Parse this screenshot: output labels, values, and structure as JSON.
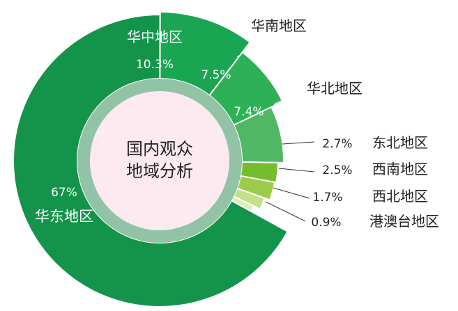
{
  "chart_data": {
    "type": "pie",
    "title": "",
    "center_label": [
      "国内观众",
      "地域分析"
    ],
    "slices": [
      {
        "name": "华东地区",
        "value": 67,
        "label": "67%",
        "color": "#14944a"
      },
      {
        "name": "华中地区",
        "value": 10.3,
        "label": "10.3%",
        "color": "#1aa552"
      },
      {
        "name": "华南地区",
        "value": 7.5,
        "label": "7.5%",
        "color": "#2eb057"
      },
      {
        "name": "华北地区",
        "value": 7.4,
        "label": "7.4%",
        "color": "#50b864"
      },
      {
        "name": "东北地区",
        "value": 2.7,
        "label": "2.7%",
        "color": "#76bd2e"
      },
      {
        "name": "西南地区",
        "value": 2.5,
        "label": "2.5%",
        "color": "#9ccc4a"
      },
      {
        "name": "西北地区",
        "value": 1.7,
        "label": "1.7%",
        "color": "#c4e08a"
      },
      {
        "name": "港澳台地区",
        "value": 0.9,
        "label": "0.9%",
        "color": "#dfeeb4"
      }
    ]
  }
}
